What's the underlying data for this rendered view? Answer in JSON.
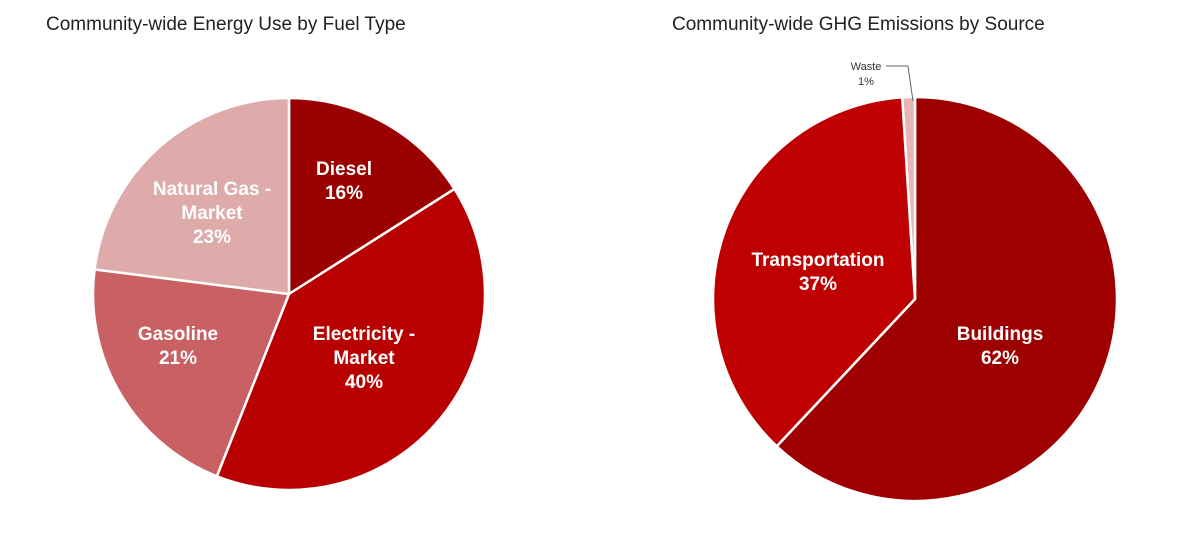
{
  "chart_data": [
    {
      "type": "pie",
      "title": "Community-wide Energy Use by Fuel Type",
      "slices": [
        {
          "label": "Diesel",
          "value": 16,
          "value_label": "16%",
          "color": "#9a0000"
        },
        {
          "label": "Electricity - Market",
          "value": 40,
          "value_label": "40%",
          "color": "#b80000"
        },
        {
          "label": "Gasoline",
          "value": 21,
          "value_label": "21%",
          "color": "#c96064"
        },
        {
          "label": "Natural Gas - Market",
          "value": 23,
          "value_label": "23%",
          "color": "#deaaaa"
        }
      ]
    },
    {
      "type": "pie",
      "title": "Community-wide GHG Emissions by Source",
      "slices": [
        {
          "label": "Buildings",
          "value": 62,
          "value_label": "62%",
          "color": "#9e0000"
        },
        {
          "label": "Transportation",
          "value": 37,
          "value_label": "37%",
          "color": "#bf0000"
        },
        {
          "label": "Waste",
          "value": 1,
          "value_label": "1%",
          "color": "#e9b4b4"
        }
      ]
    }
  ]
}
